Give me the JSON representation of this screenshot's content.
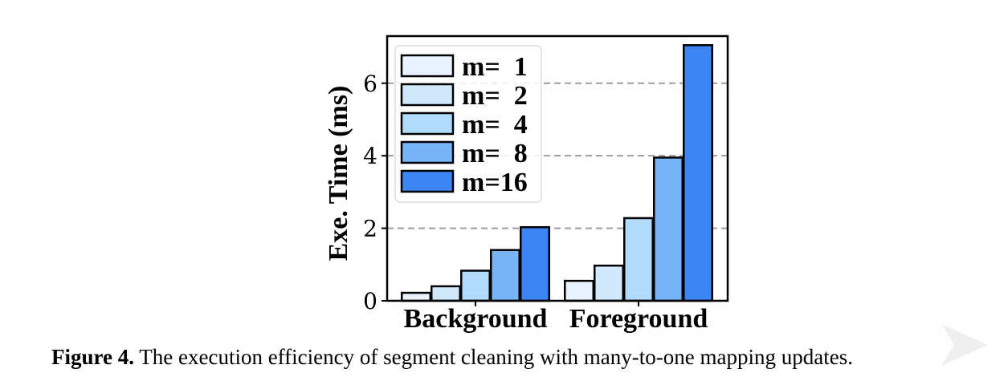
{
  "chart_data": {
    "type": "bar",
    "categories": [
      "Background",
      "Foreground"
    ],
    "series": [
      {
        "name": "m=  1",
        "values": [
          0.22,
          0.55
        ],
        "color": "#e8f3fe"
      },
      {
        "name": "m=  2",
        "values": [
          0.4,
          0.97
        ],
        "color": "#d2e8fc"
      },
      {
        "name": "m=  4",
        "values": [
          0.83,
          2.28
        ],
        "color": "#b0dbfb"
      },
      {
        "name": "m=  8",
        "values": [
          1.4,
          3.95
        ],
        "color": "#78b4f8"
      },
      {
        "name": "m=16",
        "values": [
          2.03,
          7.05
        ],
        "color": "#3d85f4"
      }
    ],
    "xlabel": "",
    "ylabel": "Exe. Time (ms)",
    "ylim": [
      0,
      7.3
    ],
    "yticks": [
      "0",
      "2",
      "4",
      "6"
    ],
    "grid": "horizontal dashed",
    "legend_position": "top-left"
  },
  "caption": {
    "label": "Figure 4.",
    "text": " The execution efficiency of segment cleaning with many-to-one mapping updates."
  },
  "colors": {
    "grid": "#9e9e9e",
    "bar_edge": "#000000",
    "watermark": "#f0f0f0"
  }
}
